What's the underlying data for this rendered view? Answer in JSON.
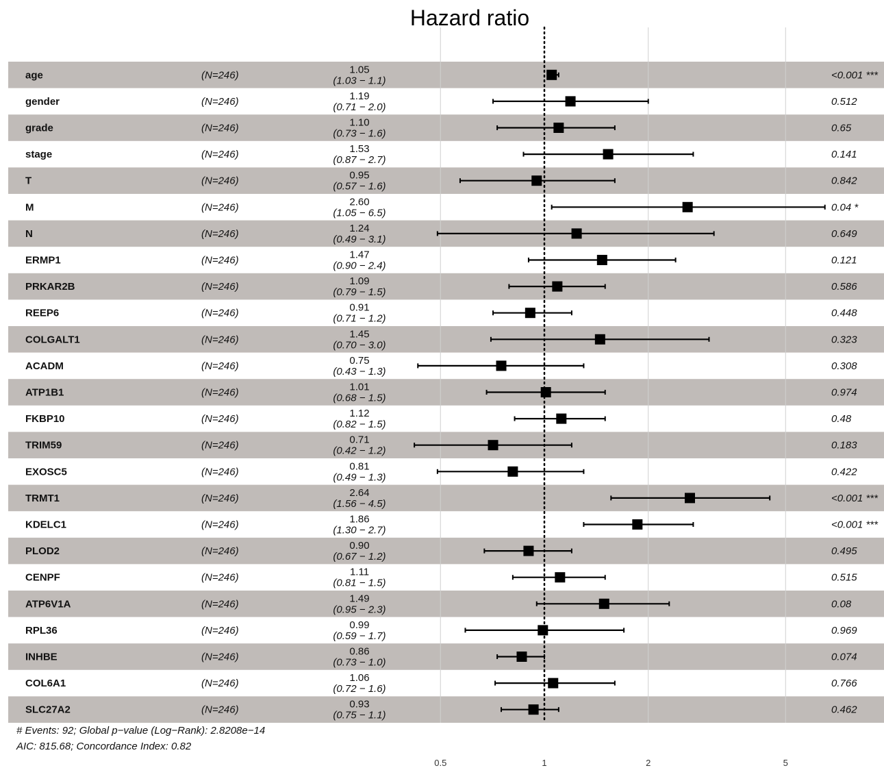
{
  "chart_data": {
    "type": "forest",
    "title": "Hazard ratio",
    "x_scale": "log",
    "reference_line": 1,
    "x_ticks": [
      0.5,
      1,
      2,
      5
    ],
    "x_tick_labels": [
      "0.5",
      "1",
      "2",
      "5"
    ],
    "x_range": [
      0.33,
      8.5
    ],
    "rows": [
      {
        "variable": "age",
        "n": "(N=246)",
        "hr": 1.05,
        "hr_label": "1.05",
        "lower": 1.03,
        "upper": 1.1,
        "ci_label": "(1.03 − 1.1)",
        "p": "<0.001 ***"
      },
      {
        "variable": "gender",
        "n": "(N=246)",
        "hr": 1.19,
        "hr_label": "1.19",
        "lower": 0.71,
        "upper": 2.0,
        "ci_label": "(0.71 − 2.0)",
        "p": "0.512"
      },
      {
        "variable": "grade",
        "n": "(N=246)",
        "hr": 1.1,
        "hr_label": "1.10",
        "lower": 0.73,
        "upper": 1.6,
        "ci_label": "(0.73 − 1.6)",
        "p": "0.65"
      },
      {
        "variable": "stage",
        "n": "(N=246)",
        "hr": 1.53,
        "hr_label": "1.53",
        "lower": 0.87,
        "upper": 2.7,
        "ci_label": "(0.87 − 2.7)",
        "p": "0.141"
      },
      {
        "variable": "T",
        "n": "(N=246)",
        "hr": 0.95,
        "hr_label": "0.95",
        "lower": 0.57,
        "upper": 1.6,
        "ci_label": "(0.57 − 1.6)",
        "p": "0.842"
      },
      {
        "variable": "M",
        "n": "(N=246)",
        "hr": 2.6,
        "hr_label": "2.60",
        "lower": 1.05,
        "upper": 6.5,
        "ci_label": "(1.05 − 6.5)",
        "p": "0.04 *"
      },
      {
        "variable": "N",
        "n": "(N=246)",
        "hr": 1.24,
        "hr_label": "1.24",
        "lower": 0.49,
        "upper": 3.1,
        "ci_label": "(0.49 − 3.1)",
        "p": "0.649"
      },
      {
        "variable": "ERMP1",
        "n": "(N=246)",
        "hr": 1.47,
        "hr_label": "1.47",
        "lower": 0.9,
        "upper": 2.4,
        "ci_label": "(0.90 − 2.4)",
        "p": "0.121"
      },
      {
        "variable": "PRKAR2B",
        "n": "(N=246)",
        "hr": 1.09,
        "hr_label": "1.09",
        "lower": 0.79,
        "upper": 1.5,
        "ci_label": "(0.79 − 1.5)",
        "p": "0.586"
      },
      {
        "variable": "REEP6",
        "n": "(N=246)",
        "hr": 0.91,
        "hr_label": "0.91",
        "lower": 0.71,
        "upper": 1.2,
        "ci_label": "(0.71 − 1.2)",
        "p": "0.448"
      },
      {
        "variable": "COLGALT1",
        "n": "(N=246)",
        "hr": 1.45,
        "hr_label": "1.45",
        "lower": 0.7,
        "upper": 3.0,
        "ci_label": "(0.70 − 3.0)",
        "p": "0.323"
      },
      {
        "variable": "ACADM",
        "n": "(N=246)",
        "hr": 0.75,
        "hr_label": "0.75",
        "lower": 0.43,
        "upper": 1.3,
        "ci_label": "(0.43 − 1.3)",
        "p": "0.308"
      },
      {
        "variable": "ATP1B1",
        "n": "(N=246)",
        "hr": 1.01,
        "hr_label": "1.01",
        "lower": 0.68,
        "upper": 1.5,
        "ci_label": "(0.68 − 1.5)",
        "p": "0.974"
      },
      {
        "variable": "FKBP10",
        "n": "(N=246)",
        "hr": 1.12,
        "hr_label": "1.12",
        "lower": 0.82,
        "upper": 1.5,
        "ci_label": "(0.82 − 1.5)",
        "p": "0.48"
      },
      {
        "variable": "TRIM59",
        "n": "(N=246)",
        "hr": 0.71,
        "hr_label": "0.71",
        "lower": 0.42,
        "upper": 1.2,
        "ci_label": "(0.42 − 1.2)",
        "p": "0.183"
      },
      {
        "variable": "EXOSC5",
        "n": "(N=246)",
        "hr": 0.81,
        "hr_label": "0.81",
        "lower": 0.49,
        "upper": 1.3,
        "ci_label": "(0.49 − 1.3)",
        "p": "0.422"
      },
      {
        "variable": "TRMT1",
        "n": "(N=246)",
        "hr": 2.64,
        "hr_label": "2.64",
        "lower": 1.56,
        "upper": 4.5,
        "ci_label": "(1.56 − 4.5)",
        "p": "<0.001 ***"
      },
      {
        "variable": "KDELC1",
        "n": "(N=246)",
        "hr": 1.86,
        "hr_label": "1.86",
        "lower": 1.3,
        "upper": 2.7,
        "ci_label": "(1.30 − 2.7)",
        "p": "<0.001 ***"
      },
      {
        "variable": "PLOD2",
        "n": "(N=246)",
        "hr": 0.9,
        "hr_label": "0.90",
        "lower": 0.67,
        "upper": 1.2,
        "ci_label": "(0.67 − 1.2)",
        "p": "0.495"
      },
      {
        "variable": "CENPF",
        "n": "(N=246)",
        "hr": 1.11,
        "hr_label": "1.11",
        "lower": 0.81,
        "upper": 1.5,
        "ci_label": "(0.81 − 1.5)",
        "p": "0.515"
      },
      {
        "variable": "ATP6V1A",
        "n": "(N=246)",
        "hr": 1.49,
        "hr_label": "1.49",
        "lower": 0.95,
        "upper": 2.3,
        "ci_label": "(0.95 − 2.3)",
        "p": "0.08"
      },
      {
        "variable": "RPL36",
        "n": "(N=246)",
        "hr": 0.99,
        "hr_label": "0.99",
        "lower": 0.59,
        "upper": 1.7,
        "ci_label": "(0.59 − 1.7)",
        "p": "0.969"
      },
      {
        "variable": "INHBE",
        "n": "(N=246)",
        "hr": 0.86,
        "hr_label": "0.86",
        "lower": 0.73,
        "upper": 1.0,
        "ci_label": "(0.73 − 1.0)",
        "p": "0.074"
      },
      {
        "variable": "COL6A1",
        "n": "(N=246)",
        "hr": 1.06,
        "hr_label": "1.06",
        "lower": 0.72,
        "upper": 1.6,
        "ci_label": "(0.72 − 1.6)",
        "p": "0.766"
      },
      {
        "variable": "SLC27A2",
        "n": "(N=246)",
        "hr": 0.93,
        "hr_label": "0.93",
        "lower": 0.75,
        "upper": 1.1,
        "ci_label": "(0.75 − 1.1)",
        "p": "0.462"
      }
    ],
    "footnotes": [
      "# Events: 92; Global p−value (Log−Rank): 2.8208e−14",
      "AIC: 815.68; Concordance Index: 0.82"
    ],
    "colors": {
      "stripe": "#c0bbb8",
      "marker": "#000000",
      "grid": "#d0d0d0"
    }
  }
}
